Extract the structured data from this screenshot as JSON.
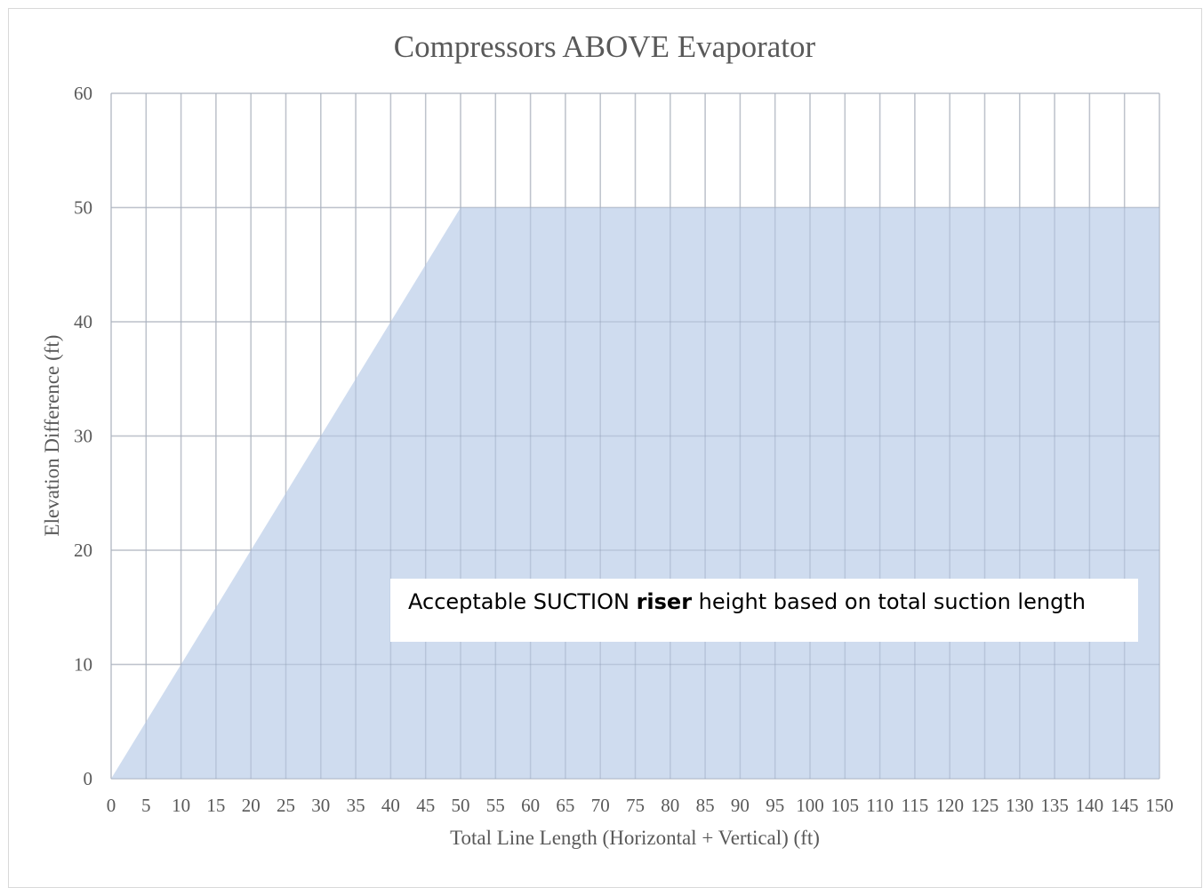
{
  "chart_data": {
    "type": "area",
    "title": "Compressors ABOVE Evaporator",
    "xlabel": "Total Line Length (Horizontal + Vertical) (ft)",
    "ylabel": "Elevation Difference (ft)",
    "xlim": [
      0,
      150
    ],
    "ylim": [
      0,
      60
    ],
    "x_ticks": [
      0,
      5,
      10,
      15,
      20,
      25,
      30,
      35,
      40,
      45,
      50,
      55,
      60,
      65,
      70,
      75,
      80,
      85,
      90,
      95,
      100,
      105,
      110,
      115,
      120,
      125,
      130,
      135,
      140,
      145,
      150
    ],
    "y_ticks": [
      0,
      10,
      20,
      30,
      40,
      50,
      60
    ],
    "grid": true,
    "series": [
      {
        "x": [
          0,
          50,
          150
        ],
        "y": [
          0,
          50,
          50
        ],
        "color": "#cfdcef"
      }
    ],
    "annotation": {
      "before": "Acceptable SUCTION ",
      "bold": "riser",
      "after": " height based on total suction length"
    }
  }
}
